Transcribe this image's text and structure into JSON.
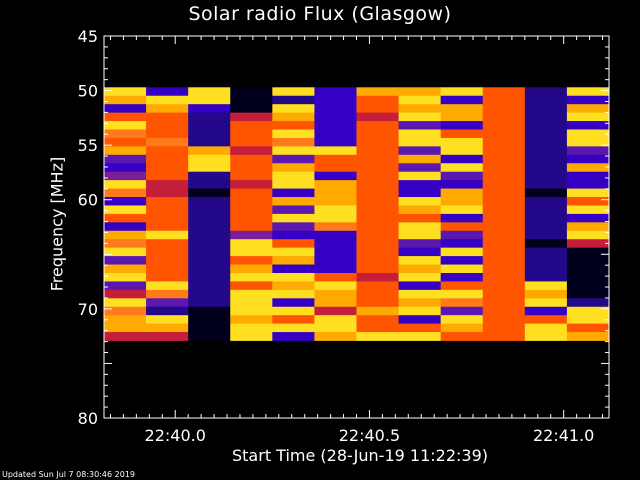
{
  "chart_data": {
    "type": "heatmap",
    "title": "Solar radio Flux (Glasgow)",
    "xlabel": "Start Time (28-Jun-19 11:22:39)",
    "ylabel": "Frequency [MHz]",
    "x_ticks": [
      "22:40.0",
      "22:40.5",
      "22:41.0"
    ],
    "x_tick_values_s": [
      2400.0,
      2430.0,
      2460.0
    ],
    "xlim_s": [
      2389.0,
      2467.0
    ],
    "y_ticks": [
      45,
      50,
      55,
      60,
      65,
      70,
      75,
      80
    ],
    "y_tick_labels": [
      "45",
      "50",
      "55",
      "60",
      "",
      "70",
      "",
      "80"
    ],
    "ylim": [
      80,
      45
    ],
    "data_freq_range_mhz": [
      49.7,
      72.9
    ],
    "time_columns": 12,
    "colormap": [
      "#00001c",
      "#23098a",
      "#3500c4",
      "#5a18b0",
      "#7a1e99",
      "#c41e3a",
      "#ff3300",
      "#ff5500",
      "#ff7a1a",
      "#ffaa00",
      "#ffe020",
      "#ffff66",
      "#ffffff"
    ],
    "colorscale_levels": [
      0.0,
      0.08,
      0.16,
      0.24,
      0.32,
      0.42,
      0.52,
      0.6,
      0.68,
      0.76,
      0.85,
      0.93,
      1.0
    ],
    "intensity_grid": [
      [
        0.9,
        0.8,
        0.2,
        0.6,
        0.9,
        0.7,
        0.6,
        0.8,
        0.3,
        0.2,
        0.4,
        0.9,
        0.7,
        0.2,
        0.9,
        0.6,
        0.2,
        0.8,
        0.7,
        0.9,
        0.3,
        0.8,
        0.9,
        0.3,
        0.5,
        0.9,
        0.7,
        0.8,
        0.8,
        0.5
      ],
      [
        0.2,
        0.9,
        0.8,
        0.6,
        0.6,
        0.6,
        0.7,
        0.6,
        0.6,
        0.6,
        0.6,
        0.5,
        0.5,
        0.6,
        0.6,
        0.6,
        0.6,
        0.9,
        0.6,
        0.6,
        0.6,
        0.6,
        0.6,
        0.9,
        0.7,
        0.3,
        0.1,
        0.9,
        0.8,
        0.5
      ],
      [
        0.9,
        0.9,
        0.2,
        0.1,
        0.1,
        0.1,
        0.1,
        0.8,
        0.9,
        0.9,
        0.1,
        0.1,
        0.0,
        0.1,
        0.1,
        0.1,
        0.1,
        0.1,
        0.1,
        0.1,
        0.1,
        0.1,
        0.1,
        0.1,
        0.1,
        0.1,
        0.0,
        0.0,
        0.0,
        0.0
      ],
      [
        0.0,
        0.0,
        0.0,
        0.5,
        0.6,
        0.6,
        0.6,
        0.5,
        0.6,
        0.6,
        0.6,
        0.5,
        0.6,
        0.6,
        0.6,
        0.6,
        0.6,
        0.4,
        0.9,
        0.9,
        0.6,
        0.8,
        0.9,
        0.6,
        0.9,
        0.9,
        0.9,
        0.8,
        0.9,
        0.9
      ],
      [
        0.9,
        0.1,
        0.9,
        0.8,
        0.6,
        0.9,
        0.7,
        0.9,
        0.3,
        0.8,
        0.9,
        0.9,
        0.2,
        0.8,
        0.3,
        0.9,
        0.3,
        0.2,
        0.6,
        0.9,
        0.8,
        0.2,
        0.9,
        0.8,
        0.9,
        0.2,
        0.9,
        0.6,
        0.9,
        0.2
      ],
      [
        0.2,
        0.2,
        0.2,
        0.2,
        0.2,
        0.2,
        0.2,
        0.9,
        0.6,
        0.6,
        0.2,
        0.8,
        0.8,
        0.8,
        0.9,
        0.9,
        0.7,
        0.2,
        0.2,
        0.2,
        0.2,
        0.2,
        0.6,
        0.9,
        0.8,
        0.8,
        0.5,
        0.9,
        0.9,
        0.8
      ],
      [
        0.8,
        0.6,
        0.6,
        0.5,
        0.6,
        0.6,
        0.6,
        0.6,
        0.6,
        0.6,
        0.6,
        0.6,
        0.6,
        0.6,
        0.6,
        0.6,
        0.6,
        0.6,
        0.6,
        0.6,
        0.6,
        0.6,
        0.5,
        0.6,
        0.6,
        0.6,
        0.8,
        0.6,
        0.6,
        0.9
      ],
      [
        0.8,
        0.9,
        0.8,
        0.9,
        0.3,
        0.9,
        0.9,
        0.3,
        0.8,
        0.3,
        0.9,
        0.2,
        0.2,
        0.9,
        0.8,
        0.6,
        0.9,
        0.9,
        0.3,
        0.2,
        0.9,
        0.8,
        0.9,
        0.2,
        0.9,
        0.8,
        0.9,
        0.2,
        0.6,
        0.9
      ],
      [
        0.9,
        0.2,
        0.8,
        0.8,
        0.2,
        0.6,
        0.9,
        0.9,
        0.2,
        0.9,
        0.3,
        0.2,
        0.8,
        0.8,
        0.9,
        0.2,
        0.6,
        0.3,
        0.2,
        0.9,
        0.2,
        0.9,
        0.2,
        0.6,
        0.9,
        0.7,
        0.3,
        0.9,
        0.8,
        0.6
      ],
      [
        0.6,
        0.6,
        0.6,
        0.6,
        0.6,
        0.6,
        0.6,
        0.6,
        0.6,
        0.6,
        0.6,
        0.6,
        0.6,
        0.6,
        0.6,
        0.6,
        0.6,
        0.6,
        0.6,
        0.6,
        0.6,
        0.6,
        0.6,
        0.6,
        0.6,
        0.6,
        0.6,
        0.6,
        0.6,
        0.6
      ],
      [
        0.1,
        0.1,
        0.1,
        0.1,
        0.1,
        0.1,
        0.1,
        0.1,
        0.1,
        0.1,
        0.1,
        0.1,
        0.0,
        0.1,
        0.1,
        0.1,
        0.1,
        0.1,
        0.0,
        0.1,
        0.1,
        0.1,
        0.1,
        0.9,
        0.8,
        0.9,
        0.2,
        0.6,
        0.9,
        0.9
      ],
      [
        0.9,
        0.2,
        0.8,
        0.9,
        0.2,
        0.9,
        0.9,
        0.3,
        0.2,
        0.8,
        0.2,
        0.2,
        0.9,
        0.6,
        0.9,
        0.2,
        0.8,
        0.9,
        0.5,
        0.0,
        0.0,
        0.0,
        0.0,
        0.0,
        0.0,
        0.1,
        0.9,
        0.9,
        0.6,
        0.8
      ]
    ]
  },
  "footer": {
    "updated": "Updated Sun Jul  7 08:30:46 2019"
  }
}
